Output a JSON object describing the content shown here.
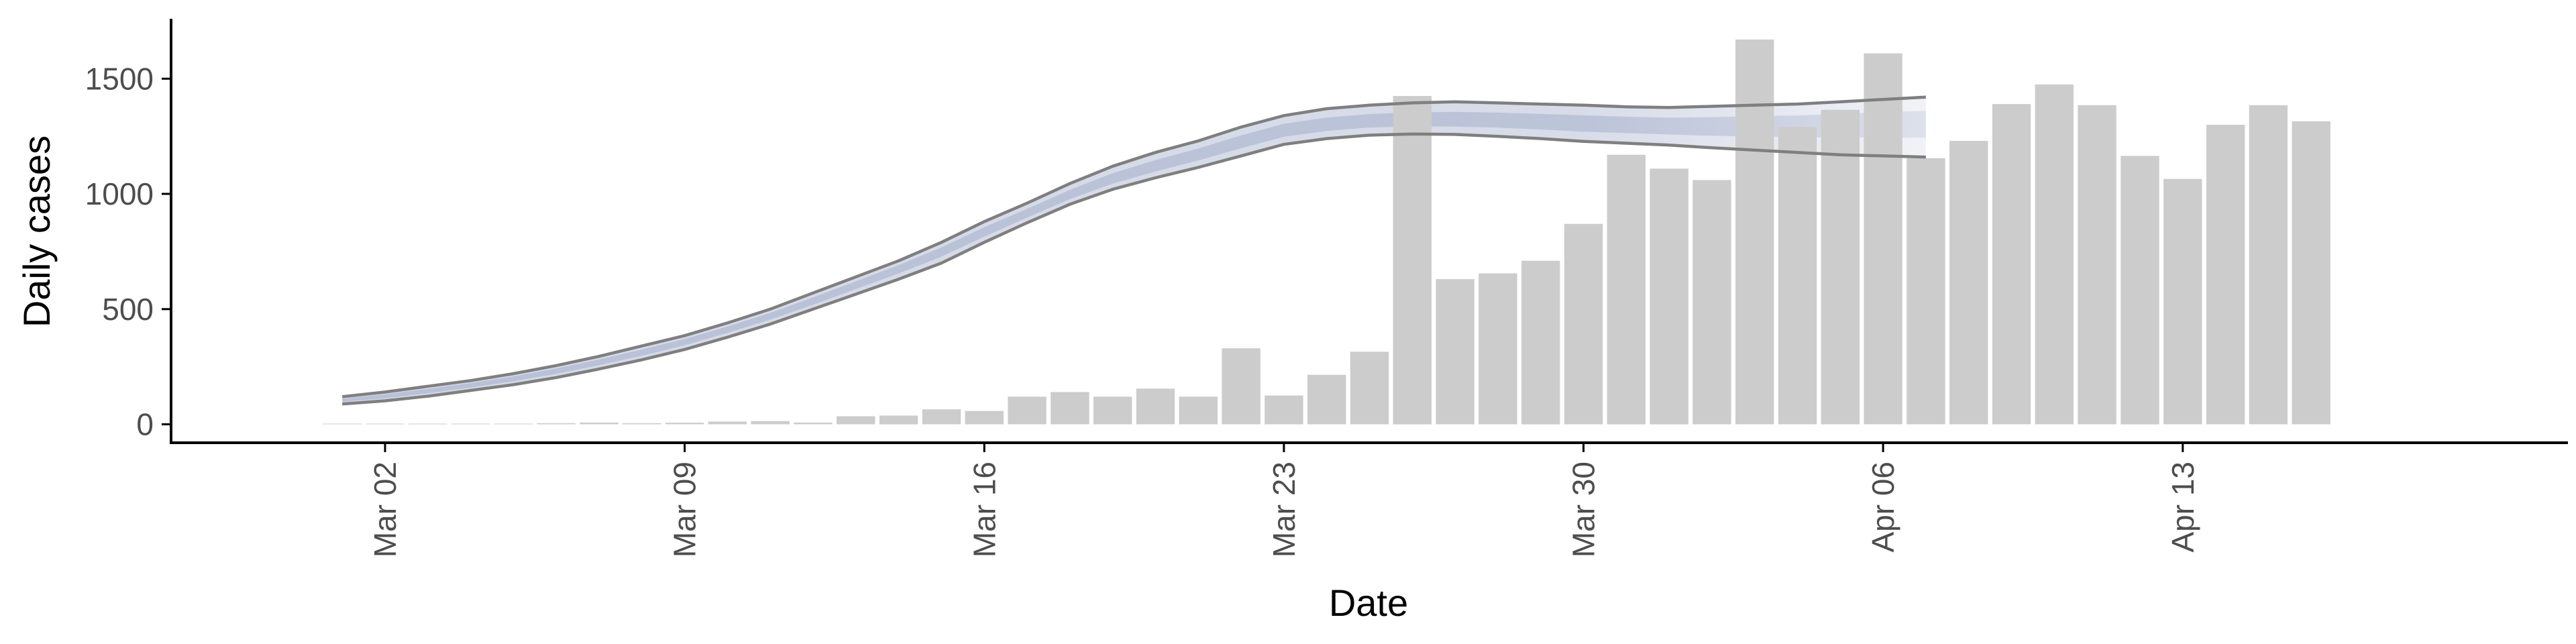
{
  "chart_data": {
    "type": "bar",
    "xlabel": "Date",
    "ylabel": "Daily cases",
    "ylim": [
      -80,
      1760
    ],
    "yticks": [
      0,
      500,
      1000,
      1500
    ],
    "xticks": [
      {
        "date": "2020-03-02",
        "label": "Mar 02"
      },
      {
        "date": "2020-03-09",
        "label": "Mar 09"
      },
      {
        "date": "2020-03-16",
        "label": "Mar 16"
      },
      {
        "date": "2020-03-23",
        "label": "Mar 23"
      },
      {
        "date": "2020-03-30",
        "label": "Mar 30"
      },
      {
        "date": "2020-04-06",
        "label": "Apr 06"
      },
      {
        "date": "2020-04-13",
        "label": "Apr 13"
      }
    ],
    "xlim": [
      "2020-02-26",
      "2020-04-22"
    ],
    "bar_color": "#cccccc",
    "bars": {
      "start_date": "2020-03-01",
      "values": [
        1,
        2,
        2,
        3,
        3,
        5,
        8,
        5,
        7,
        12,
        14,
        8,
        35,
        38,
        65,
        58,
        120,
        140,
        120,
        155,
        120,
        330,
        125,
        215,
        315,
        1425,
        630,
        655,
        710,
        870,
        1170,
        1110,
        1060,
        1670,
        1290,
        1365,
        1610,
        1155,
        1230,
        1390,
        1475,
        1385,
        1165,
        1065,
        1300,
        1385,
        1315
      ]
    },
    "estimate": {
      "start_date": "2020-03-01",
      "line_color": "#7f7f7f",
      "band_color": "#b0b9d2",
      "upper": [
        120,
        140,
        165,
        190,
        220,
        255,
        295,
        340,
        385,
        440,
        500,
        570,
        640,
        710,
        790,
        880,
        960,
        1045,
        1120,
        1180,
        1230,
        1290,
        1340,
        1370,
        1385,
        1395,
        1400,
        1395,
        1390,
        1385,
        1378,
        1375,
        1380,
        1385,
        1390,
        1400,
        1410,
        1420
      ],
      "median": [
        105,
        122,
        145,
        170,
        198,
        232,
        270,
        312,
        358,
        412,
        470,
        535,
        605,
        675,
        750,
        835,
        915,
        995,
        1065,
        1120,
        1170,
        1225,
        1275,
        1300,
        1315,
        1320,
        1320,
        1318,
        1312,
        1305,
        1300,
        1295,
        1295,
        1298,
        1300,
        1305,
        1310,
        1312
      ],
      "lower": [
        88,
        102,
        122,
        147,
        172,
        203,
        240,
        280,
        325,
        378,
        435,
        500,
        565,
        630,
        700,
        790,
        875,
        955,
        1020,
        1070,
        1115,
        1165,
        1215,
        1240,
        1255,
        1260,
        1258,
        1250,
        1240,
        1228,
        1220,
        1212,
        1200,
        1190,
        1180,
        1170,
        1165,
        1160
      ]
    }
  }
}
